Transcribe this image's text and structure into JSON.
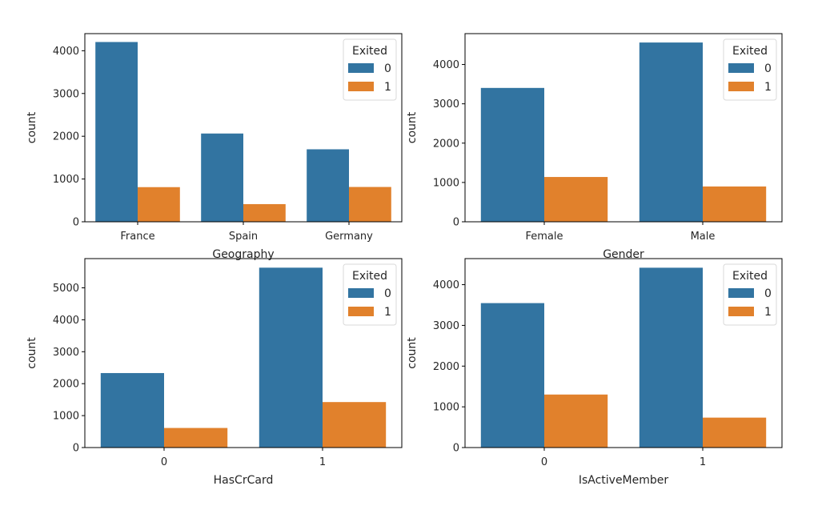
{
  "figure": {
    "colors": {
      "exited_0": "#3274a1",
      "exited_1": "#e1812c",
      "axis": "#000000",
      "text": "#262626"
    }
  },
  "chart_data": [
    {
      "type": "bar",
      "title": "",
      "xlabel": "Geography",
      "ylabel": "count",
      "categories": [
        "France",
        "Spain",
        "Germany"
      ],
      "series": [
        {
          "name": "0",
          "values": [
            4204,
            2064,
            1695
          ]
        },
        {
          "name": "1",
          "values": [
            810,
            413,
            814
          ]
        }
      ],
      "ylim": [
        0,
        4400
      ],
      "yticks": [
        0,
        1000,
        2000,
        3000,
        4000
      ],
      "legend": {
        "title": "Exited",
        "labels": [
          "0",
          "1"
        ],
        "position": "top-right"
      },
      "grid": false
    },
    {
      "type": "bar",
      "title": "",
      "xlabel": "Gender",
      "ylabel": "count",
      "categories": [
        "Female",
        "Male"
      ],
      "series": [
        {
          "name": "0",
          "values": [
            3404,
            4559
          ]
        },
        {
          "name": "1",
          "values": [
            1139,
            898
          ]
        }
      ],
      "ylim": [
        0,
        4785
      ],
      "yticks": [
        0,
        1000,
        2000,
        3000,
        4000
      ],
      "legend": {
        "title": "Exited",
        "labels": [
          "0",
          "1"
        ],
        "position": "top-right"
      },
      "grid": false
    },
    {
      "type": "bar",
      "title": "",
      "xlabel": "HasCrCard",
      "ylabel": "count",
      "categories": [
        "0",
        "1"
      ],
      "series": [
        {
          "name": "0",
          "values": [
            2332,
            5631
          ]
        },
        {
          "name": "1",
          "values": [
            613,
            1424
          ]
        }
      ],
      "ylim": [
        0,
        5915
      ],
      "yticks": [
        0,
        1000,
        2000,
        3000,
        4000,
        5000
      ],
      "legend": {
        "title": "Exited",
        "labels": [
          "0",
          "1"
        ],
        "position": "top-right"
      },
      "grid": false
    },
    {
      "type": "bar",
      "title": "",
      "xlabel": "IsActiveMember",
      "ylabel": "count",
      "categories": [
        "0",
        "1"
      ],
      "series": [
        {
          "name": "0",
          "values": [
            3547,
            4416
          ]
        },
        {
          "name": "1",
          "values": [
            1302,
            735
          ]
        }
      ],
      "ylim": [
        0,
        4640
      ],
      "yticks": [
        0,
        1000,
        2000,
        3000,
        4000
      ],
      "legend": {
        "title": "Exited",
        "labels": [
          "0",
          "1"
        ],
        "position": "top-right"
      },
      "grid": false
    }
  ]
}
